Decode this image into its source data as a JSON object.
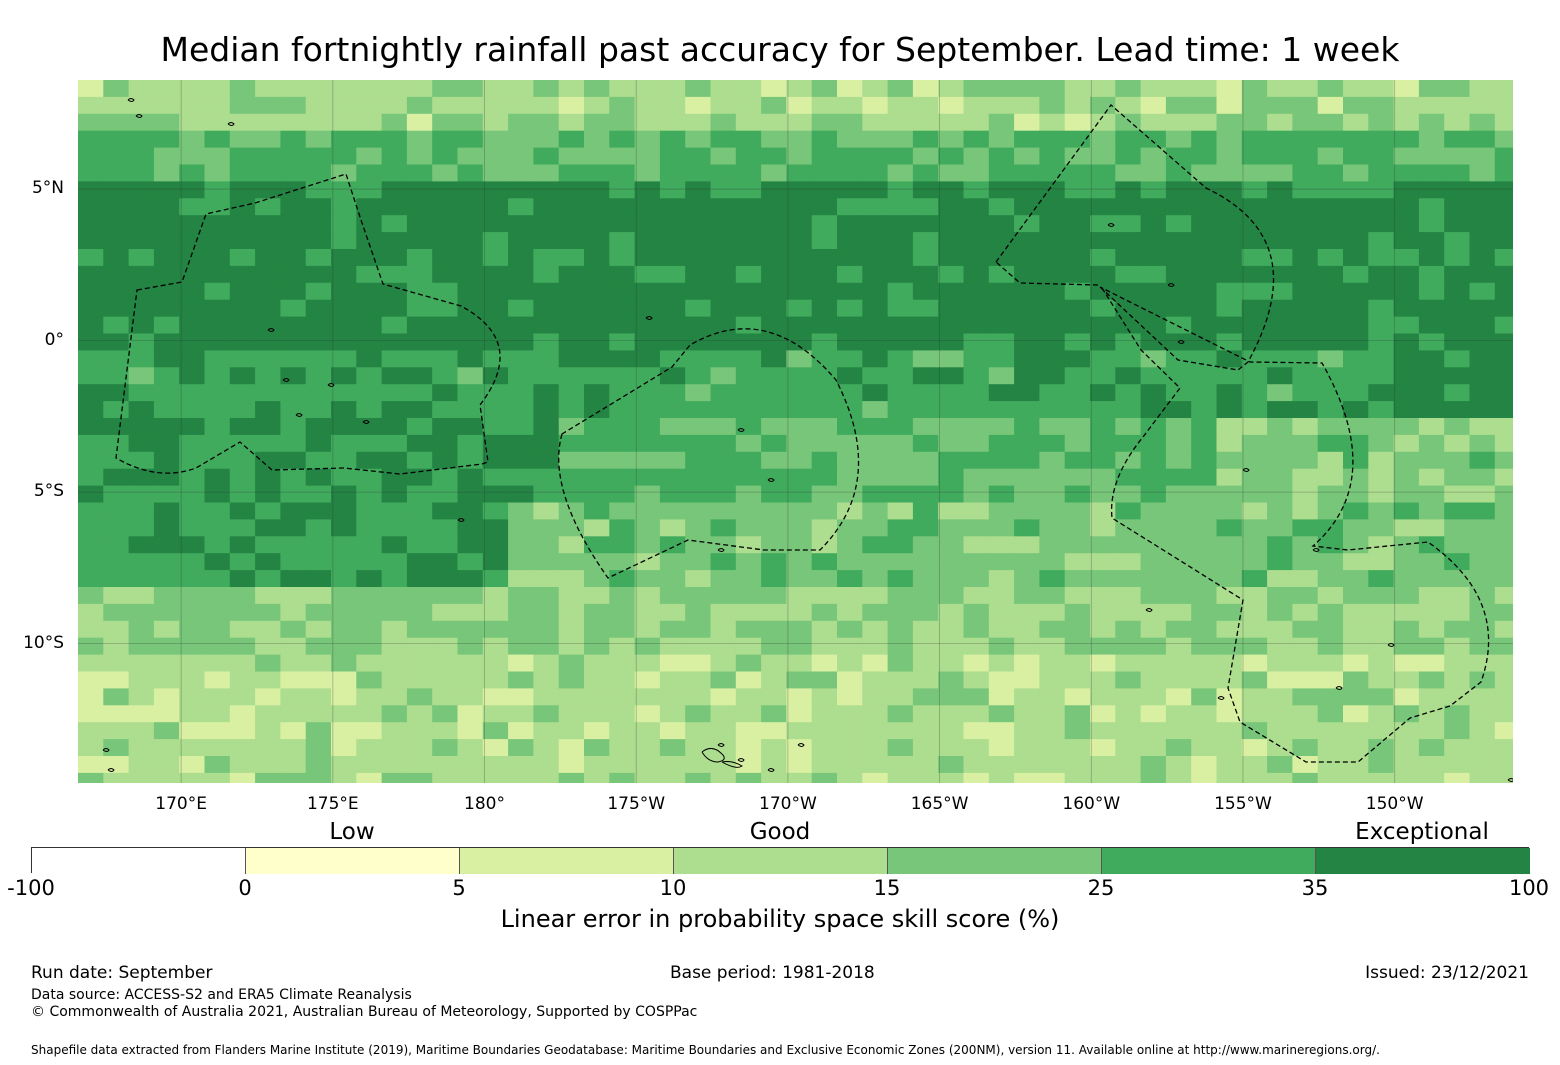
{
  "title": "Median fortnightly rainfall past accuracy for September. Lead time: 1 week",
  "map": {
    "lat_labels": [
      "5°N",
      "0°",
      "5°S",
      "10°S"
    ],
    "lon_labels": [
      "170°E",
      "175°E",
      "180°",
      "175°W",
      "170°W",
      "165°W",
      "160°W",
      "155°W",
      "150°W"
    ],
    "lon_values_deg_east": [
      170,
      175,
      180,
      185,
      190,
      195,
      200,
      205,
      210
    ],
    "lat_values_deg": [
      5,
      0,
      -5,
      -10
    ],
    "extent": {
      "lon_min": 166.6,
      "lon_max": 213.9,
      "lat_min": -14.6,
      "lat_max": 8.6
    },
    "skill_pattern_note_rows": [
      "north: light-to-mid green",
      "equatorial band ~5N to 1S: exceptional (35-100)",
      "south: decreasing to 5-15"
    ]
  },
  "legend": {
    "categories": [
      {
        "label": "Low",
        "at": 2.5
      },
      {
        "label": "Good",
        "at": 12.5
      },
      {
        "label": "Exceptional",
        "at": 67.5
      }
    ],
    "bins": [
      {
        "from": "-100",
        "to": "0",
        "color": "#ffffff"
      },
      {
        "from": "0",
        "to": "5",
        "color": "#ffffcc"
      },
      {
        "from": "5",
        "to": "10",
        "color": "#d9f0a3"
      },
      {
        "from": "10",
        "to": "15",
        "color": "#addd8e"
      },
      {
        "from": "15",
        "to": "25",
        "color": "#78c679"
      },
      {
        "from": "25",
        "to": "35",
        "color": "#41ab5d"
      },
      {
        "from": "35",
        "to": "100",
        "color": "#238443"
      }
    ],
    "tick_labels": [
      "-100",
      "0",
      "5",
      "10",
      "15",
      "25",
      "35",
      "100"
    ],
    "axis_label": "Linear error in probability space skill score (%)"
  },
  "footer": {
    "run_date": "Run date: September",
    "base_period": "Base period: 1981-2018",
    "issued": "Issued: 23/12/2021",
    "data_source": "Data source: ACCESS-S2 and ERA5 Climate Reanalysis",
    "copyright": "© Commonwealth of Australia 2021, Australian Bureau of Meteorology, Supported by COSPPac",
    "shapefile": "Shapefile data extracted from Flanders Marine Institute (2019), Maritime Boundaries Geodatabase: Maritime Boundaries and Exclusive Economic Zones (200NM), version 11. Available online at http://www.marineregions.org/."
  }
}
